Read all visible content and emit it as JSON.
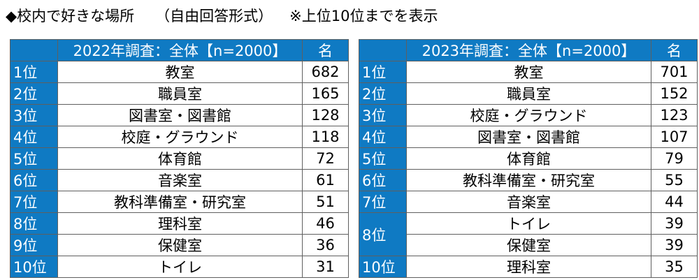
{
  "heading": {
    "main": "◆校内で好きな場所",
    "sub": "（自由回答形式）",
    "note": "※上位10位までを表示"
  },
  "tables": [
    {
      "header_label": "2022年調査：全体【n=2000】",
      "count_label": "名",
      "rows": [
        {
          "rank": "1位",
          "place": "教室",
          "count": "682"
        },
        {
          "rank": "2位",
          "place": "職員室",
          "count": "165"
        },
        {
          "rank": "3位",
          "place": "図書室・図書館",
          "count": "128"
        },
        {
          "rank": "4位",
          "place": "校庭・グラウンド",
          "count": "118"
        },
        {
          "rank": "5位",
          "place": "体育館",
          "count": "72"
        },
        {
          "rank": "6位",
          "place": "音楽室",
          "count": "61"
        },
        {
          "rank": "7位",
          "place": "教科準備室・研究室",
          "count": "51"
        },
        {
          "rank": "8位",
          "place": "理科室",
          "count": "46"
        },
        {
          "rank": "9位",
          "place": "保健室",
          "count": "36"
        },
        {
          "rank": "10位",
          "place": "トイレ",
          "count": "31"
        }
      ]
    },
    {
      "header_label": "2023年調査：全体【n=2000】",
      "count_label": "名",
      "rows": [
        {
          "rank": "1位",
          "place": "教室",
          "count": "701"
        },
        {
          "rank": "2位",
          "place": "職員室",
          "count": "152"
        },
        {
          "rank": "3位",
          "place": "校庭・グラウンド",
          "count": "123"
        },
        {
          "rank": "4位",
          "place": "図書室・図書館",
          "count": "107"
        },
        {
          "rank": "5位",
          "place": "体育館",
          "count": "79"
        },
        {
          "rank": "6位",
          "place": "教科準備室・研究室",
          "count": "55"
        },
        {
          "rank": "7位",
          "place": "音楽室",
          "count": "44"
        },
        {
          "rank": "8位",
          "place": "トイレ",
          "count": "39"
        },
        {
          "rank": "",
          "place": "保健室",
          "count": "39"
        },
        {
          "rank": "10位",
          "place": "理科室",
          "count": "35"
        }
      ]
    }
  ],
  "colors": {
    "header_blue": "#0f7ac3",
    "border": "#5f5f5f"
  }
}
